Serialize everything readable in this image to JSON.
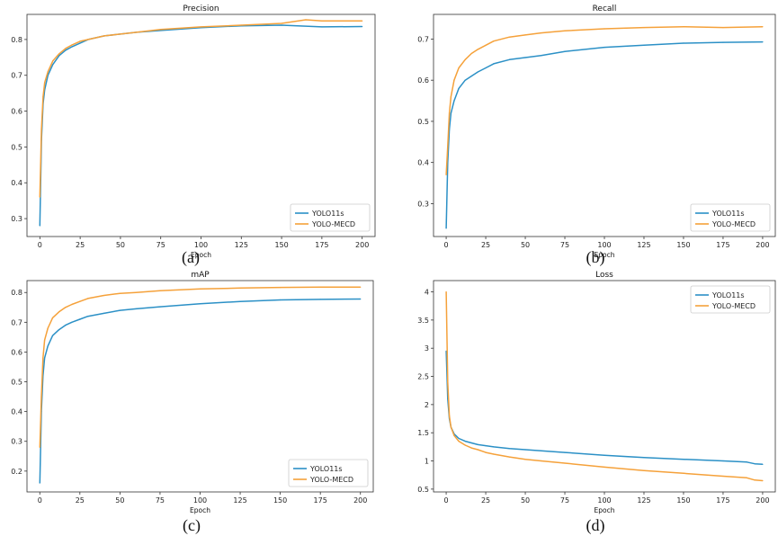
{
  "colors": {
    "yolo11s": "#2b90c6",
    "yolo_mecd": "#f5a13a"
  },
  "chart_data": [
    {
      "type": "line",
      "title": "Precision",
      "xlabel": "Epoch",
      "ylabel": "",
      "caption": "(a)",
      "xlim": [
        -8,
        208
      ],
      "ylim": [
        0.25,
        0.87
      ],
      "xticks": [
        0,
        25,
        50,
        75,
        100,
        125,
        150,
        175,
        200
      ],
      "yticks": [
        0.3,
        0.4,
        0.5,
        0.6,
        0.7,
        0.8
      ],
      "legend": "lower-right",
      "series": [
        {
          "name": "YOLO11s",
          "color": "#2b90c6",
          "x": [
            0,
            1,
            2,
            3,
            5,
            8,
            12,
            16,
            20,
            25,
            30,
            40,
            50,
            60,
            75,
            100,
            125,
            150,
            175,
            200
          ],
          "y": [
            0.28,
            0.52,
            0.62,
            0.66,
            0.7,
            0.73,
            0.755,
            0.77,
            0.78,
            0.79,
            0.8,
            0.81,
            0.815,
            0.82,
            0.825,
            0.833,
            0.838,
            0.84,
            0.835,
            0.836
          ]
        },
        {
          "name": "YOLO-MECD",
          "color": "#f5a13a",
          "x": [
            0,
            1,
            2,
            3,
            5,
            8,
            12,
            16,
            20,
            25,
            30,
            40,
            50,
            60,
            75,
            100,
            125,
            150,
            165,
            175,
            200
          ],
          "y": [
            0.36,
            0.55,
            0.64,
            0.68,
            0.71,
            0.74,
            0.76,
            0.775,
            0.785,
            0.795,
            0.8,
            0.81,
            0.815,
            0.82,
            0.828,
            0.835,
            0.84,
            0.845,
            0.855,
            0.852,
            0.852
          ]
        }
      ]
    },
    {
      "type": "line",
      "title": "Recall",
      "xlabel": "Epoch",
      "ylabel": "",
      "caption": "(b)",
      "xlim": [
        -8,
        208
      ],
      "ylim": [
        0.22,
        0.76
      ],
      "xticks": [
        0,
        25,
        50,
        75,
        100,
        125,
        150,
        175,
        200
      ],
      "yticks": [
        0.3,
        0.4,
        0.5,
        0.6,
        0.7
      ],
      "legend": "lower-right",
      "series": [
        {
          "name": "YOLO11s",
          "color": "#2b90c6",
          "x": [
            0,
            1,
            2,
            3,
            5,
            8,
            12,
            16,
            20,
            25,
            30,
            40,
            50,
            60,
            75,
            100,
            125,
            150,
            175,
            200
          ],
          "y": [
            0.24,
            0.4,
            0.48,
            0.52,
            0.55,
            0.58,
            0.6,
            0.61,
            0.62,
            0.63,
            0.64,
            0.65,
            0.655,
            0.66,
            0.67,
            0.68,
            0.685,
            0.69,
            0.692,
            0.693
          ]
        },
        {
          "name": "YOLO-MECD",
          "color": "#f5a13a",
          "x": [
            0,
            1,
            2,
            3,
            5,
            8,
            12,
            16,
            20,
            25,
            30,
            40,
            50,
            60,
            75,
            100,
            125,
            150,
            175,
            200
          ],
          "y": [
            0.37,
            0.44,
            0.52,
            0.56,
            0.6,
            0.63,
            0.65,
            0.665,
            0.675,
            0.685,
            0.695,
            0.705,
            0.71,
            0.715,
            0.72,
            0.725,
            0.728,
            0.73,
            0.728,
            0.73
          ]
        }
      ]
    },
    {
      "type": "line",
      "title": "mAP",
      "xlabel": "Epoch",
      "ylabel": "",
      "caption": "(c)",
      "xlim": [
        -8,
        208
      ],
      "ylim": [
        0.13,
        0.84
      ],
      "xticks": [
        0,
        25,
        50,
        75,
        100,
        125,
        150,
        175,
        200
      ],
      "yticks": [
        0.2,
        0.3,
        0.4,
        0.5,
        0.6,
        0.7,
        0.8
      ],
      "legend": "lower-right",
      "series": [
        {
          "name": "YOLO11s",
          "color": "#2b90c6",
          "x": [
            0,
            1,
            2,
            3,
            5,
            8,
            12,
            16,
            20,
            25,
            30,
            40,
            50,
            60,
            75,
            100,
            125,
            150,
            175,
            200
          ],
          "y": [
            0.16,
            0.4,
            0.52,
            0.58,
            0.62,
            0.655,
            0.675,
            0.69,
            0.7,
            0.71,
            0.72,
            0.73,
            0.74,
            0.745,
            0.752,
            0.762,
            0.77,
            0.775,
            0.777,
            0.778
          ]
        },
        {
          "name": "YOLO-MECD",
          "color": "#f5a13a",
          "x": [
            0,
            1,
            2,
            3,
            5,
            8,
            12,
            16,
            20,
            25,
            30,
            40,
            50,
            60,
            75,
            100,
            125,
            150,
            175,
            200
          ],
          "y": [
            0.28,
            0.45,
            0.58,
            0.64,
            0.68,
            0.715,
            0.735,
            0.75,
            0.76,
            0.77,
            0.78,
            0.79,
            0.797,
            0.8,
            0.806,
            0.812,
            0.815,
            0.817,
            0.818,
            0.818
          ]
        }
      ]
    },
    {
      "type": "line",
      "title": "Loss",
      "xlabel": "Epoch",
      "ylabel": "",
      "caption": "(d)",
      "xlim": [
        -8,
        208
      ],
      "ylim": [
        0.45,
        4.2
      ],
      "xticks": [
        0,
        25,
        50,
        75,
        100,
        125,
        150,
        175,
        200
      ],
      "yticks": [
        0.5,
        1.0,
        1.5,
        2.0,
        2.5,
        3.0,
        3.5,
        4.0
      ],
      "legend": "top-right",
      "series": [
        {
          "name": "YOLO11s",
          "color": "#2b90c6",
          "x": [
            0,
            1,
            2,
            3,
            5,
            8,
            12,
            16,
            20,
            25,
            30,
            40,
            50,
            60,
            75,
            100,
            125,
            150,
            175,
            190,
            195,
            200
          ],
          "y": [
            2.95,
            2.1,
            1.75,
            1.6,
            1.48,
            1.4,
            1.35,
            1.32,
            1.29,
            1.27,
            1.25,
            1.22,
            1.2,
            1.18,
            1.15,
            1.1,
            1.06,
            1.03,
            1.0,
            0.98,
            0.95,
            0.94
          ]
        },
        {
          "name": "YOLO-MECD",
          "color": "#f5a13a",
          "x": [
            0,
            1,
            2,
            3,
            5,
            8,
            12,
            16,
            20,
            25,
            30,
            40,
            50,
            60,
            75,
            100,
            125,
            150,
            175,
            190,
            195,
            200
          ],
          "y": [
            4.0,
            2.4,
            1.8,
            1.6,
            1.45,
            1.35,
            1.28,
            1.23,
            1.2,
            1.15,
            1.12,
            1.07,
            1.03,
            1.0,
            0.96,
            0.89,
            0.83,
            0.78,
            0.73,
            0.7,
            0.66,
            0.65
          ]
        }
      ]
    }
  ]
}
